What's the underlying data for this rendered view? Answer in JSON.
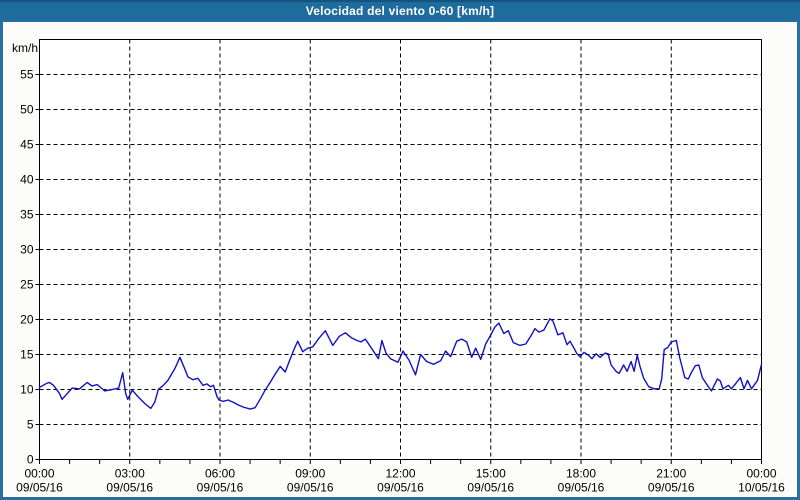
{
  "window": {
    "title": "Velocidad del viento 0-60 [km/h]"
  },
  "colors": {
    "titlebar_bg": "#1e6b9e",
    "titlebar_text": "#ffffff",
    "frame_border": "#2a6d9e",
    "page_bg": "#fcfdfa",
    "plot_bg": "#ffffff",
    "grid": "#000000",
    "axis": "#000000",
    "line": "#1111c4",
    "tick_text": "#000000"
  },
  "chart_data": {
    "type": "line",
    "title": "Velocidad del viento 0-60 [km/h]",
    "ylabel": "km/h",
    "xlabel": "",
    "ylim": [
      0,
      60
    ],
    "ytick_step": 5,
    "grid": "dashed",
    "legend": "none",
    "x_minutes_range": [
      0,
      1440
    ],
    "x_minor_tick_every_minutes": 60,
    "x_major_ticks": [
      {
        "minutes": 0,
        "time": "00:00",
        "date": "09/05/16"
      },
      {
        "minutes": 180,
        "time": "03:00",
        "date": "09/05/16"
      },
      {
        "minutes": 360,
        "time": "06:00",
        "date": "09/05/16"
      },
      {
        "minutes": 540,
        "time": "09:00",
        "date": "09/05/16"
      },
      {
        "minutes": 720,
        "time": "12:00",
        "date": "09/05/16"
      },
      {
        "minutes": 900,
        "time": "15:00",
        "date": "09/05/16"
      },
      {
        "minutes": 1080,
        "time": "18:00",
        "date": "09/05/16"
      },
      {
        "minutes": 1260,
        "time": "21:00",
        "date": "09/05/16"
      },
      {
        "minutes": 1440,
        "time": "00:00",
        "date": "10/05/16"
      }
    ],
    "series": [
      {
        "name": "Velocidad del viento [km/h]",
        "color": "#1111c4",
        "points_minutes_kmh": [
          [
            0,
            10.3
          ],
          [
            15,
            10.9
          ],
          [
            20,
            11.0
          ],
          [
            28,
            10.6
          ],
          [
            40,
            9.4
          ],
          [
            45,
            8.6
          ],
          [
            55,
            9.4
          ],
          [
            65,
            10.2
          ],
          [
            80,
            10.1
          ],
          [
            95,
            11.0
          ],
          [
            105,
            10.5
          ],
          [
            115,
            10.7
          ],
          [
            130,
            9.8
          ],
          [
            145,
            10.0
          ],
          [
            158,
            10.2
          ],
          [
            166,
            12.4
          ],
          [
            172,
            9.4
          ],
          [
            176,
            8.6
          ],
          [
            185,
            9.9
          ],
          [
            196,
            9.0
          ],
          [
            210,
            8.0
          ],
          [
            222,
            7.3
          ],
          [
            230,
            8.2
          ],
          [
            237,
            10.0
          ],
          [
            247,
            10.6
          ],
          [
            256,
            11.3
          ],
          [
            270,
            13.0
          ],
          [
            280,
            14.6
          ],
          [
            290,
            12.9
          ],
          [
            296,
            11.8
          ],
          [
            306,
            11.4
          ],
          [
            316,
            11.6
          ],
          [
            326,
            10.6
          ],
          [
            334,
            10.8
          ],
          [
            341,
            10.4
          ],
          [
            347,
            10.6
          ],
          [
            354,
            9.0
          ],
          [
            358,
            8.5
          ],
          [
            366,
            8.3
          ],
          [
            376,
            8.5
          ],
          [
            386,
            8.2
          ],
          [
            396,
            7.8
          ],
          [
            406,
            7.5
          ],
          [
            420,
            7.2
          ],
          [
            430,
            7.4
          ],
          [
            440,
            8.6
          ],
          [
            450,
            9.9
          ],
          [
            460,
            11.0
          ],
          [
            470,
            12.2
          ],
          [
            480,
            13.3
          ],
          [
            490,
            12.5
          ],
          [
            498,
            14.0
          ],
          [
            508,
            15.8
          ],
          [
            515,
            16.9
          ],
          [
            525,
            15.4
          ],
          [
            535,
            15.9
          ],
          [
            545,
            16.1
          ],
          [
            556,
            17.2
          ],
          [
            570,
            18.4
          ],
          [
            585,
            16.3
          ],
          [
            598,
            17.6
          ],
          [
            610,
            18.1
          ],
          [
            622,
            17.4
          ],
          [
            633,
            17.0
          ],
          [
            641,
            16.8
          ],
          [
            650,
            17.2
          ],
          [
            665,
            15.6
          ],
          [
            676,
            14.4
          ],
          [
            683,
            17.0
          ],
          [
            691,
            15.2
          ],
          [
            700,
            14.4
          ],
          [
            715,
            13.9
          ],
          [
            725,
            15.5
          ],
          [
            737,
            14.2
          ],
          [
            750,
            12.1
          ],
          [
            760,
            15.0
          ],
          [
            772,
            14.0
          ],
          [
            786,
            13.6
          ],
          [
            800,
            14.1
          ],
          [
            810,
            15.5
          ],
          [
            820,
            14.7
          ],
          [
            832,
            16.9
          ],
          [
            842,
            17.2
          ],
          [
            852,
            16.8
          ],
          [
            862,
            14.6
          ],
          [
            870,
            15.9
          ],
          [
            880,
            14.3
          ],
          [
            890,
            16.5
          ],
          [
            900,
            17.8
          ],
          [
            908,
            18.9
          ],
          [
            916,
            19.5
          ],
          [
            926,
            18.0
          ],
          [
            935,
            18.4
          ],
          [
            945,
            16.7
          ],
          [
            958,
            16.3
          ],
          [
            970,
            16.5
          ],
          [
            982,
            17.9
          ],
          [
            988,
            18.7
          ],
          [
            996,
            18.2
          ],
          [
            1006,
            18.5
          ],
          [
            1018,
            20.1
          ],
          [
            1024,
            19.8
          ],
          [
            1034,
            17.8
          ],
          [
            1044,
            18.1
          ],
          [
            1052,
            16.4
          ],
          [
            1058,
            16.9
          ],
          [
            1066,
            15.9
          ],
          [
            1072,
            15.1
          ],
          [
            1078,
            14.7
          ],
          [
            1086,
            15.3
          ],
          [
            1095,
            14.9
          ],
          [
            1102,
            14.4
          ],
          [
            1110,
            15.1
          ],
          [
            1118,
            14.6
          ],
          [
            1128,
            15.2
          ],
          [
            1134,
            15.1
          ],
          [
            1140,
            13.5
          ],
          [
            1150,
            12.6
          ],
          [
            1156,
            12.3
          ],
          [
            1165,
            13.5
          ],
          [
            1172,
            12.6
          ],
          [
            1180,
            14.0
          ],
          [
            1186,
            12.6
          ],
          [
            1192,
            14.9
          ],
          [
            1198,
            13.2
          ],
          [
            1205,
            11.6
          ],
          [
            1215,
            10.4
          ],
          [
            1226,
            10.1
          ],
          [
            1236,
            10.1
          ],
          [
            1241,
            11.5
          ],
          [
            1246,
            15.7
          ],
          [
            1253,
            16.0
          ],
          [
            1260,
            16.8
          ],
          [
            1270,
            17.0
          ],
          [
            1277,
            14.5
          ],
          [
            1287,
            11.7
          ],
          [
            1294,
            11.5
          ],
          [
            1300,
            12.4
          ],
          [
            1308,
            13.4
          ],
          [
            1315,
            13.5
          ],
          [
            1322,
            11.7
          ],
          [
            1332,
            10.6
          ],
          [
            1340,
            9.8
          ],
          [
            1352,
            11.5
          ],
          [
            1358,
            11.2
          ],
          [
            1363,
            10.1
          ],
          [
            1374,
            10.6
          ],
          [
            1380,
            10.1
          ],
          [
            1388,
            10.8
          ],
          [
            1398,
            11.7
          ],
          [
            1405,
            10.1
          ],
          [
            1412,
            11.3
          ],
          [
            1420,
            10.1
          ],
          [
            1432,
            11.3
          ],
          [
            1440,
            13.6
          ]
        ]
      }
    ]
  }
}
